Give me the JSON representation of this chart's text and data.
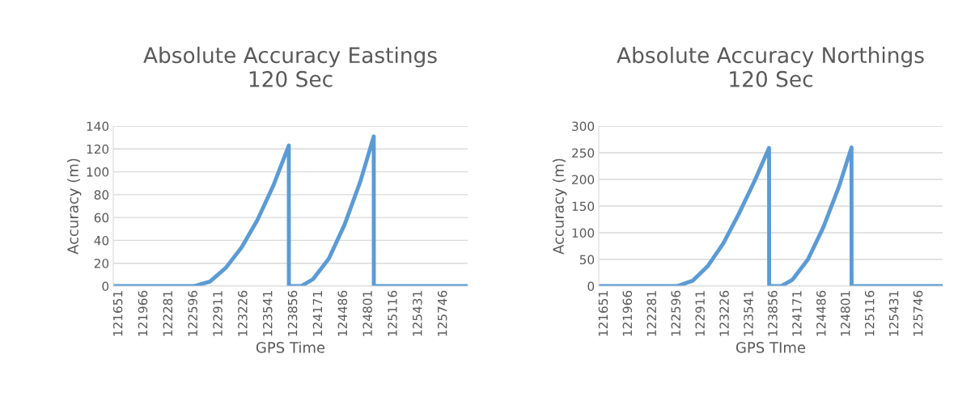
{
  "chart_data": [
    {
      "type": "line",
      "title": "Absolute Accuracy Eastings\n120 Sec",
      "xlabel": "GPS Time",
      "ylabel": "Accuracy (m)",
      "series": [
        {
          "color": "#5b9bd5",
          "x": [
            121580,
            122600,
            122800,
            123000,
            123200,
            123400,
            123600,
            123795,
            123796,
            123950,
            124100,
            124300,
            124500,
            124700,
            124867,
            124868,
            126052
          ],
          "values": [
            0,
            0,
            4,
            16,
            34,
            58,
            88,
            123,
            0,
            0,
            6,
            24,
            54,
            92,
            131,
            0,
            0
          ]
        }
      ],
      "xlim": [
        121580,
        126052
      ],
      "xticks": [
        121651,
        121966,
        122281,
        122596,
        122911,
        123226,
        123541,
        123856,
        124171,
        124486,
        124801,
        125116,
        125431,
        125746
      ],
      "ylim": [
        0,
        140
      ],
      "yticks": [
        0,
        20,
        40,
        60,
        80,
        100,
        120,
        140
      ],
      "grid": "y"
    },
    {
      "type": "line",
      "title": "Absolute Accuracy Northings\n120 Sec",
      "xlabel": "GPS TIme",
      "ylabel": "Accuracy (m)",
      "series": [
        {
          "color": "#5b9bd5",
          "x": [
            121580,
            122600,
            122800,
            123000,
            123200,
            123400,
            123600,
            123795,
            123796,
            123950,
            124100,
            124300,
            124500,
            124700,
            124867,
            124868,
            126052
          ],
          "values": [
            0,
            0,
            10,
            38,
            80,
            135,
            195,
            259,
            0,
            0,
            12,
            50,
            110,
            185,
            260,
            0,
            0
          ]
        }
      ],
      "xlim": [
        121580,
        126052
      ],
      "xticks": [
        121651,
        121966,
        122281,
        122596,
        122911,
        123226,
        123541,
        123856,
        124171,
        124486,
        124801,
        125116,
        125431,
        125746
      ],
      "ylim": [
        0,
        300
      ],
      "yticks": [
        0,
        50,
        100,
        150,
        200,
        250,
        300
      ],
      "grid": "y"
    }
  ]
}
